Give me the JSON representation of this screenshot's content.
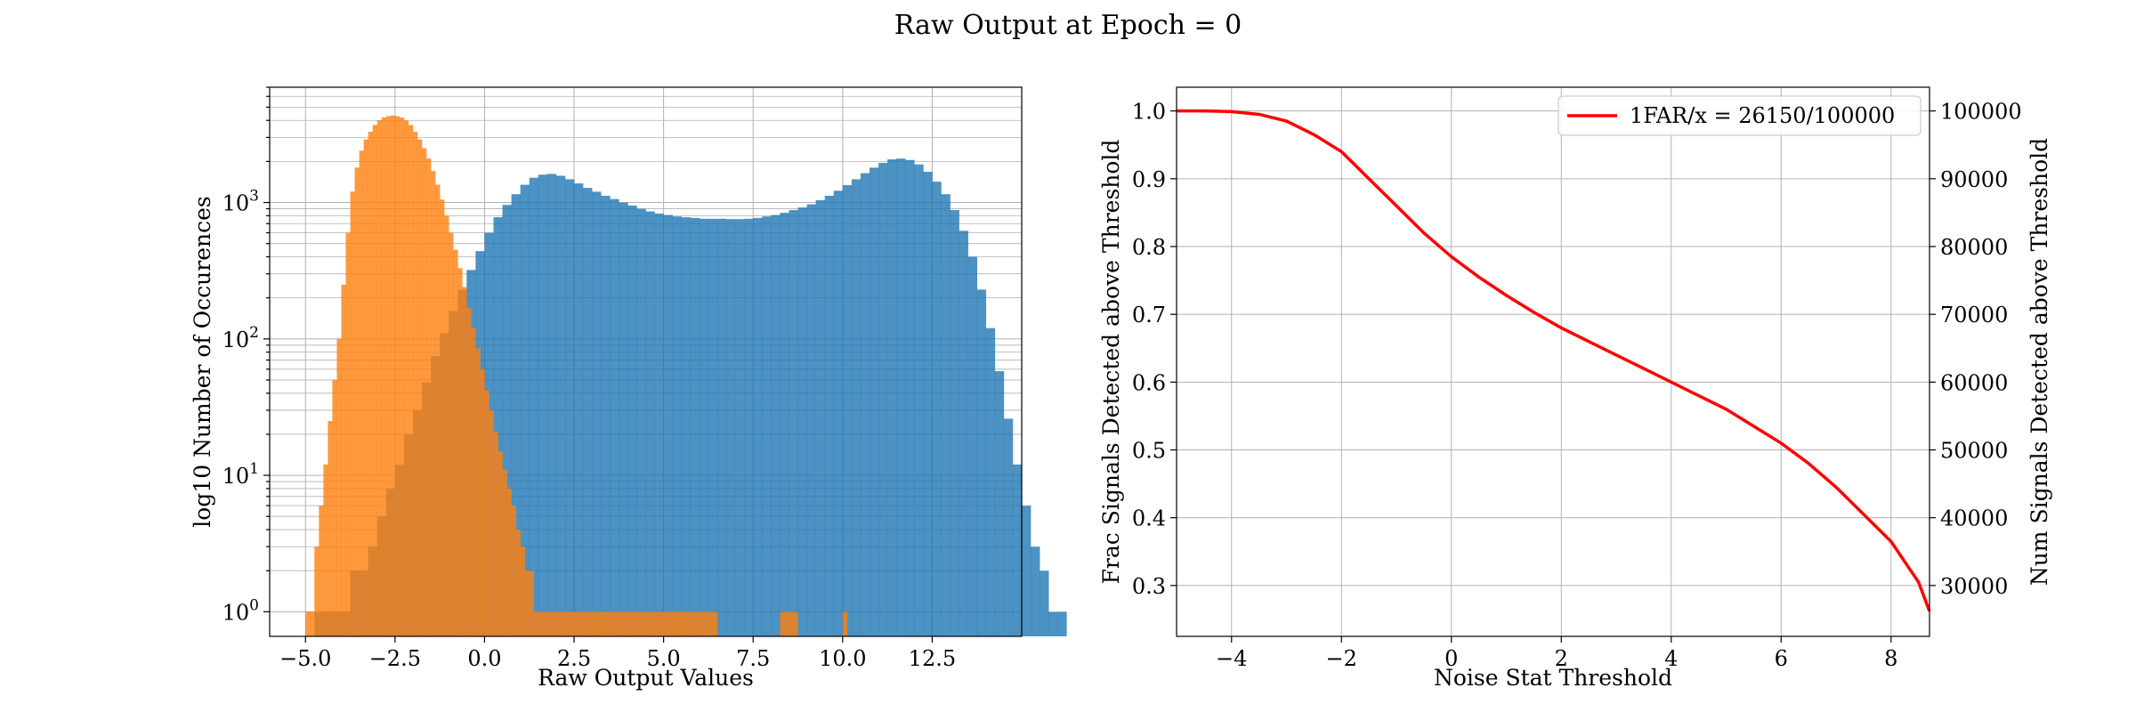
{
  "figure": {
    "suptitle": "Raw Output at Epoch = 0"
  },
  "chart_data": [
    {
      "type": "histogram",
      "xlabel": "Raw Output Values",
      "ylabel": "log10 Number of Occurences",
      "yscale": "log",
      "xlim": [
        -6.0,
        15.0
      ],
      "ylim": [
        0.66,
        7000
      ],
      "xticks": [
        -5.0,
        -2.5,
        0.0,
        2.5,
        5.0,
        7.5,
        10.0,
        12.5
      ],
      "xtick_labels": [
        "−5.0",
        "−2.5",
        "0.0",
        "2.5",
        "5.0",
        "7.5",
        "10.0",
        "12.5"
      ],
      "yticks": [
        1,
        10,
        100,
        1000
      ],
      "ytick_labels": [
        "10^0",
        "10^1",
        "10^2",
        "10^3"
      ],
      "grid": true,
      "series": [
        {
          "color": "#1f77b4",
          "bin_start": -4.75,
          "bin_width": 0.25,
          "counts": [
            1,
            1,
            1,
            1,
            2,
            2,
            3,
            5,
            8,
            12,
            20,
            30,
            48,
            75,
            110,
            160,
            230,
            320,
            440,
            600,
            780,
            960,
            1150,
            1350,
            1520,
            1600,
            1620,
            1570,
            1480,
            1380,
            1280,
            1200,
            1120,
            1060,
            1000,
            950,
            900,
            860,
            830,
            810,
            790,
            780,
            770,
            760,
            760,
            760,
            755,
            755,
            760,
            770,
            790,
            810,
            840,
            880,
            920,
            970,
            1040,
            1120,
            1220,
            1340,
            1480,
            1640,
            1800,
            1950,
            2070,
            2100,
            2050,
            1900,
            1680,
            1420,
            1150,
            880,
            620,
            400,
            230,
            120,
            58,
            26,
            12,
            6,
            3,
            2,
            1,
            1
          ]
        },
        {
          "color": "#ff7f0e",
          "bin_start": -5.0,
          "bin_width": 0.125,
          "counts": [
            1,
            1,
            3,
            6,
            12,
            25,
            50,
            100,
            250,
            600,
            1200,
            1800,
            2400,
            2900,
            3300,
            3700,
            4000,
            4200,
            4300,
            4350,
            4300,
            4200,
            4000,
            3700,
            3300,
            2900,
            2500,
            2100,
            1700,
            1350,
            1050,
            800,
            600,
            450,
            330,
            240,
            170,
            120,
            85,
            60,
            42,
            30,
            21,
            15,
            11,
            8,
            6,
            4,
            3,
            2,
            2,
            1,
            1,
            1,
            1,
            1,
            1,
            1,
            1,
            1,
            1,
            1,
            1,
            1,
            1,
            1,
            1,
            1,
            1,
            1,
            1,
            1,
            1,
            1,
            1,
            1,
            1,
            1,
            1,
            1,
            1,
            1,
            1,
            1,
            1,
            1,
            1,
            1,
            1,
            1,
            1,
            1,
            0,
            0,
            0,
            0,
            0,
            0,
            0,
            0,
            0,
            0,
            0,
            0,
            0,
            0,
            1,
            1,
            1,
            1,
            0,
            0,
            0,
            0,
            0,
            0,
            0,
            0,
            0,
            0,
            1,
            0,
            0,
            0,
            0,
            0,
            0,
            0
          ]
        }
      ]
    },
    {
      "type": "line",
      "xlabel": "Noise Stat Threshold",
      "ylabel": "Frac Signals Detected above Threshold",
      "ylabel_right": "Num Signals Detected above Threshold",
      "xlim": [
        -5.0,
        8.7
      ],
      "ylim": [
        0.225,
        1.035
      ],
      "ylim_right": [
        22500,
        103500
      ],
      "xticks": [
        -4,
        -2,
        0,
        2,
        4,
        6,
        8
      ],
      "xtick_labels": [
        "−4",
        "−2",
        "0",
        "2",
        "4",
        "6",
        "8"
      ],
      "yticks": [
        0.3,
        0.4,
        0.5,
        0.6,
        0.7,
        0.8,
        0.9,
        1.0
      ],
      "ytick_labels": [
        "0.3",
        "0.4",
        "0.5",
        "0.6",
        "0.7",
        "0.8",
        "0.9",
        "1.0"
      ],
      "yticks_right": [
        30000,
        40000,
        50000,
        60000,
        70000,
        80000,
        90000,
        100000
      ],
      "ytick_labels_right": [
        "30000",
        "40000",
        "50000",
        "60000",
        "70000",
        "80000",
        "90000",
        "100000"
      ],
      "grid": true,
      "legend_position": "upper-right",
      "series": [
        {
          "name": "1FAR/x = 26150/100000",
          "color": "#ff0000",
          "x": [
            -5.0,
            -4.5,
            -4.0,
            -3.5,
            -3.0,
            -2.5,
            -2.0,
            -1.5,
            -1.0,
            -0.5,
            0.0,
            0.5,
            1.0,
            1.5,
            2.0,
            2.5,
            3.0,
            3.5,
            4.0,
            4.5,
            5.0,
            5.5,
            6.0,
            6.5,
            7.0,
            7.5,
            8.0,
            8.5,
            8.7
          ],
          "y": [
            1.0,
            1.0,
            0.999,
            0.995,
            0.985,
            0.965,
            0.94,
            0.9,
            0.86,
            0.82,
            0.785,
            0.755,
            0.728,
            0.703,
            0.68,
            0.66,
            0.64,
            0.62,
            0.6,
            0.58,
            0.56,
            0.535,
            0.51,
            0.48,
            0.445,
            0.405,
            0.365,
            0.305,
            0.262
          ]
        }
      ]
    }
  ]
}
